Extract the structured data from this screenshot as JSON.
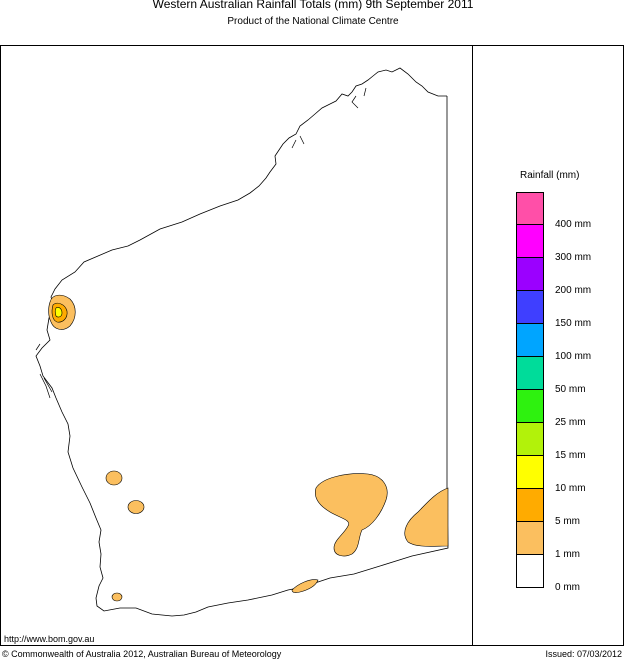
{
  "title": "Western Australian Rainfall Totals (mm) 9th September 2011",
  "subtitle": "Product of the National Climate Centre",
  "legend": {
    "title": "Rainfall (mm)",
    "levels": [
      {
        "label": "400 mm",
        "color": "#ff4fa8"
      },
      {
        "label": "300 mm",
        "color": "#ff00ff"
      },
      {
        "label": "200 mm",
        "color": "#9b00ff"
      },
      {
        "label": "150 mm",
        "color": "#3f3fff"
      },
      {
        "label": "100 mm",
        "color": "#00a5ff"
      },
      {
        "label": "50 mm",
        "color": "#00dc9a"
      },
      {
        "label": "25 mm",
        "color": "#2ef20f"
      },
      {
        "label": "15 mm",
        "color": "#b2f20a"
      },
      {
        "label": "10 mm",
        "color": "#ffff00"
      },
      {
        "label": "5 mm",
        "color": "#ffab00"
      },
      {
        "label": "1 mm",
        "color": "#fbbf5f"
      },
      {
        "label": "0 mm",
        "color": "#ffffff"
      }
    ]
  },
  "footer": {
    "url": "http://www.bom.gov.au",
    "copyright": "© Commonwealth of Australia 2012, Australian Bureau of Meteorology",
    "issued": "Issued: 07/03/2012"
  }
}
